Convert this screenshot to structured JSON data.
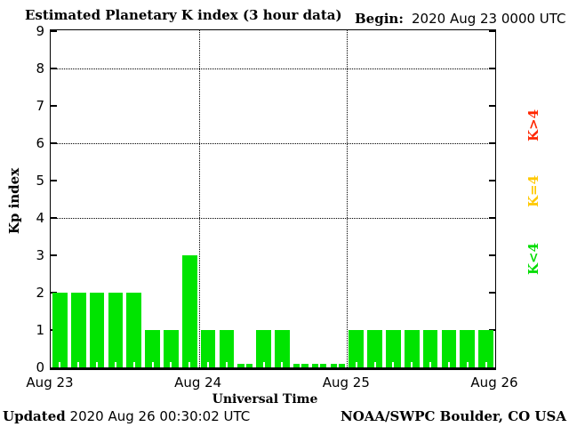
{
  "header": {
    "title": "Estimated Planetary K index (3 hour data)",
    "begin_label": "Begin:",
    "begin_value": "2020 Aug 23 0000 UTC"
  },
  "chart_data": {
    "type": "bar",
    "title": "Estimated Planetary K index (3 hour data)",
    "xlabel": "Universal Time",
    "ylabel": "Kp index",
    "ylim": [
      0,
      9
    ],
    "y_ticks": [
      0,
      1,
      2,
      3,
      4,
      5,
      6,
      7,
      8,
      9
    ],
    "gridline_levels": [
      4,
      6,
      8
    ],
    "grid": "dotted horizontal at Kp 4,6,8; dotted vertical at day boundaries",
    "day_labels": [
      "Aug 23",
      "Aug 24",
      "Aug 25",
      "Aug 26"
    ],
    "hours_per_bar": 3,
    "bars_per_day": 8,
    "values": [
      2,
      2,
      2,
      2,
      2,
      1,
      1,
      3,
      1,
      1,
      0,
      1,
      1,
      0,
      0,
      0,
      1,
      1,
      1,
      1,
      1,
      1,
      1,
      1
    ],
    "bar_color": "#00E400",
    "legend_position": "right",
    "legend": [
      {
        "label": "K>4",
        "color": "#FF2600"
      },
      {
        "label": "K=4",
        "color": "#FFC800"
      },
      {
        "label": "K<4",
        "color": "#00DD00"
      }
    ]
  },
  "footer": {
    "updated_label": "Updated",
    "updated_value": "2020 Aug 26 00:30:02 UTC",
    "source": "NOAA/SWPC Boulder, CO USA"
  }
}
